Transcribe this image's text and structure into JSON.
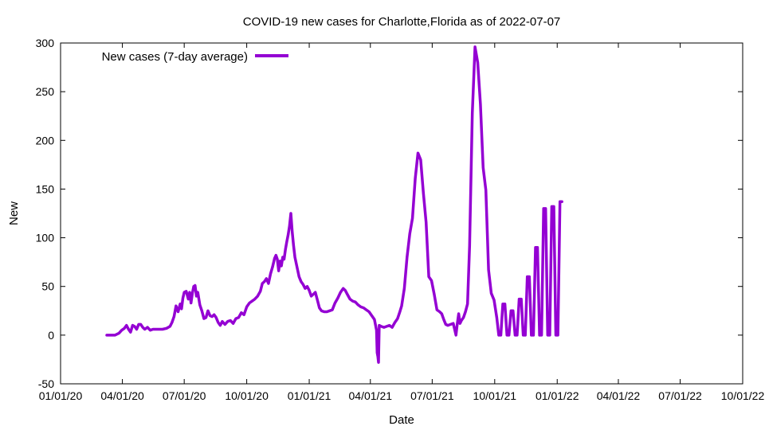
{
  "chart_data": {
    "type": "line",
    "title": "COVID-19 new cases for Charlotte,Florida as of 2022-07-07",
    "xlabel": "Date",
    "ylabel": "New",
    "ylim": [
      -50,
      300
    ],
    "y_ticks": [
      -50,
      0,
      50,
      100,
      150,
      200,
      250,
      300
    ],
    "x_range_days": [
      0,
      1004
    ],
    "x_ticks": [
      {
        "label": "01/01/20",
        "day": 0
      },
      {
        "label": "04/01/20",
        "day": 91
      },
      {
        "label": "07/01/20",
        "day": 182
      },
      {
        "label": "10/01/20",
        "day": 274
      },
      {
        "label": "01/01/21",
        "day": 366
      },
      {
        "label": "04/01/21",
        "day": 456
      },
      {
        "label": "07/01/21",
        "day": 547
      },
      {
        "label": "10/01/21",
        "day": 639
      },
      {
        "label": "01/01/22",
        "day": 731
      },
      {
        "label": "04/01/22",
        "day": 821
      },
      {
        "label": "07/01/22",
        "day": 912
      },
      {
        "label": "10/01/22",
        "day": 1004
      }
    ],
    "legend": "top-left",
    "grid": false,
    "series": [
      {
        "name": "New cases (7-day average)",
        "color": "#9400d3",
        "x_unit": "days since 2020-01-01",
        "points": [
          [
            68,
            0
          ],
          [
            80,
            0
          ],
          [
            86,
            2
          ],
          [
            90,
            5
          ],
          [
            94,
            7
          ],
          [
            97,
            10
          ],
          [
            100,
            6
          ],
          [
            103,
            3
          ],
          [
            106,
            10
          ],
          [
            109,
            9
          ],
          [
            112,
            6
          ],
          [
            115,
            11
          ],
          [
            118,
            11
          ],
          [
            121,
            8
          ],
          [
            124,
            6
          ],
          [
            128,
            8
          ],
          [
            132,
            5
          ],
          [
            136,
            6
          ],
          [
            142,
            6
          ],
          [
            150,
            6
          ],
          [
            156,
            7
          ],
          [
            161,
            9
          ],
          [
            164,
            13
          ],
          [
            167,
            19
          ],
          [
            170,
            30
          ],
          [
            173,
            24
          ],
          [
            176,
            32
          ],
          [
            178,
            27
          ],
          [
            180,
            38
          ],
          [
            182,
            44
          ],
          [
            185,
            45
          ],
          [
            188,
            37
          ],
          [
            190,
            44
          ],
          [
            192,
            33
          ],
          [
            194,
            43
          ],
          [
            196,
            50
          ],
          [
            198,
            51
          ],
          [
            200,
            40
          ],
          [
            202,
            44
          ],
          [
            205,
            31
          ],
          [
            208,
            25
          ],
          [
            211,
            17
          ],
          [
            214,
            18
          ],
          [
            217,
            25
          ],
          [
            220,
            20
          ],
          [
            223,
            19
          ],
          [
            226,
            21
          ],
          [
            229,
            18
          ],
          [
            232,
            13
          ],
          [
            235,
            10
          ],
          [
            238,
            14
          ],
          [
            242,
            11
          ],
          [
            246,
            14
          ],
          [
            250,
            15
          ],
          [
            254,
            12
          ],
          [
            258,
            17
          ],
          [
            262,
            18
          ],
          [
            266,
            23
          ],
          [
            270,
            21
          ],
          [
            274,
            29
          ],
          [
            278,
            33
          ],
          [
            282,
            35
          ],
          [
            286,
            37
          ],
          [
            290,
            40
          ],
          [
            294,
            45
          ],
          [
            297,
            53
          ],
          [
            300,
            55
          ],
          [
            303,
            58
          ],
          [
            306,
            53
          ],
          [
            309,
            63
          ],
          [
            312,
            70
          ],
          [
            315,
            79
          ],
          [
            317,
            82
          ],
          [
            319,
            78
          ],
          [
            321,
            66
          ],
          [
            323,
            76
          ],
          [
            325,
            71
          ],
          [
            327,
            80
          ],
          [
            329,
            78
          ],
          [
            331,
            88
          ],
          [
            333,
            96
          ],
          [
            335,
            103
          ],
          [
            337,
            112
          ],
          [
            339,
            125
          ],
          [
            341,
            106
          ],
          [
            343,
            92
          ],
          [
            345,
            80
          ],
          [
            348,
            70
          ],
          [
            351,
            60
          ],
          [
            354,
            55
          ],
          [
            357,
            52
          ],
          [
            360,
            48
          ],
          [
            363,
            50
          ],
          [
            366,
            46
          ],
          [
            369,
            40
          ],
          [
            372,
            42
          ],
          [
            375,
            44
          ],
          [
            378,
            36
          ],
          [
            381,
            28
          ],
          [
            384,
            25
          ],
          [
            388,
            24
          ],
          [
            392,
            24
          ],
          [
            396,
            25
          ],
          [
            400,
            26
          ],
          [
            404,
            33
          ],
          [
            408,
            38
          ],
          [
            412,
            44
          ],
          [
            416,
            48
          ],
          [
            419,
            46
          ],
          [
            422,
            42
          ],
          [
            426,
            37
          ],
          [
            430,
            35
          ],
          [
            434,
            34
          ],
          [
            438,
            31
          ],
          [
            442,
            29
          ],
          [
            446,
            28
          ],
          [
            450,
            26
          ],
          [
            454,
            24
          ],
          [
            458,
            20
          ],
          [
            462,
            16
          ],
          [
            465,
            5
          ],
          [
            466,
            -18
          ],
          [
            467,
            -22
          ],
          [
            468,
            -28
          ],
          [
            469,
            10
          ],
          [
            472,
            9
          ],
          [
            476,
            8
          ],
          [
            480,
            9
          ],
          [
            484,
            10
          ],
          [
            488,
            8
          ],
          [
            492,
            13
          ],
          [
            496,
            17
          ],
          [
            499,
            23
          ],
          [
            502,
            30
          ],
          [
            506,
            48
          ],
          [
            510,
            80
          ],
          [
            514,
            104
          ],
          [
            518,
            120
          ],
          [
            522,
            161
          ],
          [
            526,
            187
          ],
          [
            530,
            180
          ],
          [
            534,
            146
          ],
          [
            538,
            116
          ],
          [
            542,
            60
          ],
          [
            546,
            56
          ],
          [
            550,
            42
          ],
          [
            554,
            26
          ],
          [
            558,
            24
          ],
          [
            561,
            22
          ],
          [
            564,
            16
          ],
          [
            567,
            11
          ],
          [
            570,
            10
          ],
          [
            574,
            11
          ],
          [
            578,
            12
          ],
          [
            582,
            0
          ],
          [
            584,
            12
          ],
          [
            586,
            22
          ],
          [
            588,
            12
          ],
          [
            590,
            15
          ],
          [
            593,
            18
          ],
          [
            596,
            24
          ],
          [
            599,
            32
          ],
          [
            602,
            92
          ],
          [
            606,
            228
          ],
          [
            610,
            296
          ],
          [
            614,
            280
          ],
          [
            618,
            237
          ],
          [
            622,
            172
          ],
          [
            626,
            149
          ],
          [
            630,
            67
          ],
          [
            634,
            43
          ],
          [
            638,
            36
          ],
          [
            642,
            18
          ],
          [
            645,
            0
          ],
          [
            648,
            0
          ],
          [
            651,
            32
          ],
          [
            654,
            32
          ],
          [
            657,
            0
          ],
          [
            660,
            0
          ],
          [
            663,
            25
          ],
          [
            666,
            25
          ],
          [
            669,
            0
          ],
          [
            672,
            0
          ],
          [
            675,
            37
          ],
          [
            678,
            37
          ],
          [
            681,
            0
          ],
          [
            684,
            0
          ],
          [
            687,
            60
          ],
          [
            690,
            60
          ],
          [
            693,
            0
          ],
          [
            696,
            0
          ],
          [
            699,
            90
          ],
          [
            702,
            90
          ],
          [
            705,
            0
          ],
          [
            708,
            0
          ],
          [
            711,
            130
          ],
          [
            714,
            130
          ],
          [
            717,
            0
          ],
          [
            720,
            0
          ],
          [
            723,
            132
          ],
          [
            726,
            132
          ],
          [
            729,
            0
          ],
          [
            732,
            0
          ],
          [
            735,
            137
          ],
          [
            738,
            137
          ]
        ]
      }
    ]
  }
}
